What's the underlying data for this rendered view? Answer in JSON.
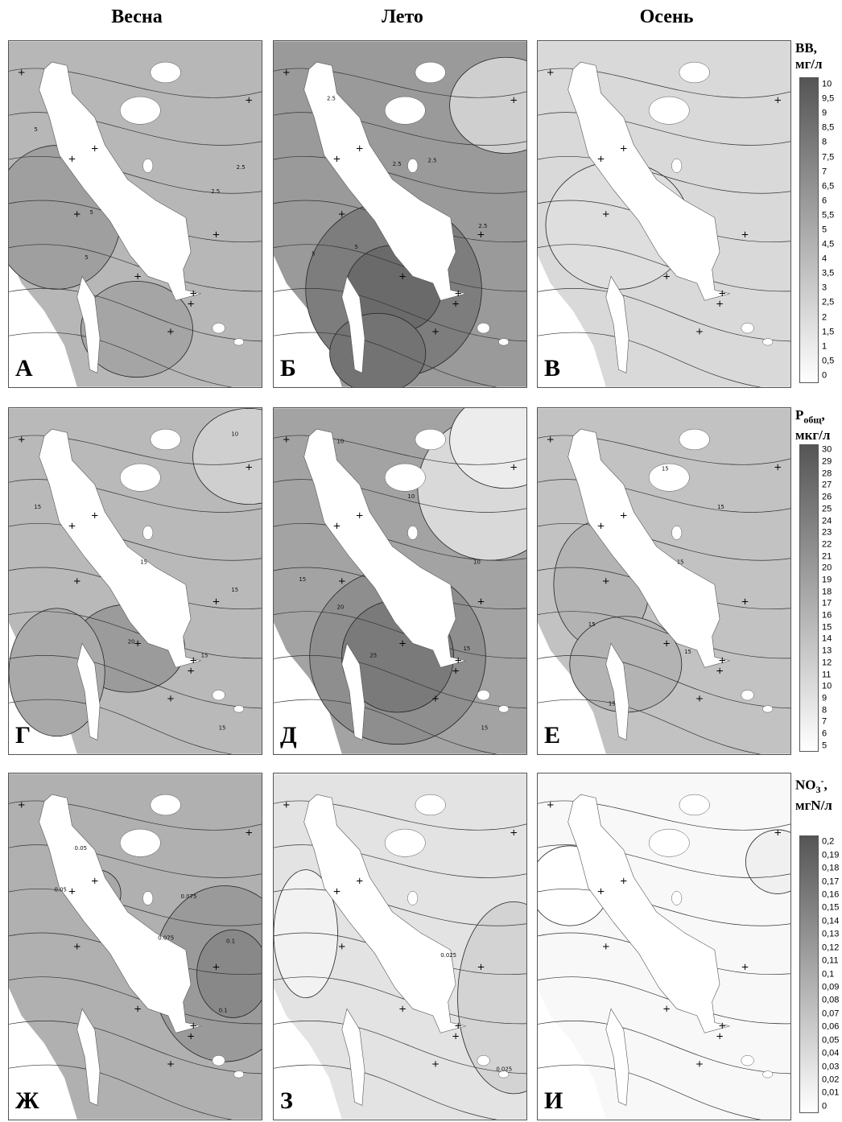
{
  "column_headers": [
    "Весна",
    "Лето",
    "Осень"
  ],
  "rows": [
    {
      "legend_title_html": "ВВ,<br>мг/л",
      "legend_ticks": [
        "10",
        "9,5",
        "9",
        "8,5",
        "8",
        "7,5",
        "7",
        "6,5",
        "6",
        "5,5",
        "5",
        "4,5",
        "4",
        "3,5",
        "3",
        "2,5",
        "2",
        "1,5",
        "1",
        "0,5",
        "0"
      ],
      "panels": [
        {
          "letter": "А",
          "contour_labels": [
            "5",
            "5",
            "5",
            "2.5",
            "2.5"
          ]
        },
        {
          "letter": "Б",
          "contour_labels": [
            "2.5",
            "2.5",
            "2.5",
            "5",
            "5",
            "2.5"
          ]
        },
        {
          "letter": "В",
          "contour_labels": []
        }
      ]
    },
    {
      "legend_title_html": "P<sub>общ</sub>,<br>мкг/л",
      "legend_ticks": [
        "30",
        "29",
        "28",
        "27",
        "26",
        "25",
        "24",
        "23",
        "22",
        "21",
        "20",
        "19",
        "18",
        "17",
        "16",
        "15",
        "14",
        "13",
        "12",
        "11",
        "10",
        "9",
        "8",
        "7",
        "6",
        "5"
      ],
      "panels": [
        {
          "letter": "Г",
          "contour_labels": [
            "10",
            "15",
            "15",
            "15",
            "20",
            "15",
            "15"
          ]
        },
        {
          "letter": "Д",
          "contour_labels": [
            "10",
            "10",
            "10",
            "15",
            "20",
            "25",
            "15",
            "15"
          ]
        },
        {
          "letter": "Е",
          "contour_labels": [
            "15",
            "15",
            "15",
            "15",
            "15",
            "15"
          ]
        }
      ]
    },
    {
      "legend_title_html": "NO<sub>3</sub><sup>-</sup>,<br>мгN/л",
      "legend_ticks": [
        "0,2",
        "0,19",
        "0,18",
        "0,17",
        "0,16",
        "0,15",
        "0,14",
        "0,13",
        "0,12",
        "0,11",
        "0,1",
        "0,09",
        "0,08",
        "0,07",
        "0,06",
        "0,05",
        "0,04",
        "0,03",
        "0,02",
        "0,01",
        "0"
      ],
      "panels": [
        {
          "letter": "Ж",
          "contour_labels": [
            "0.05",
            "0.05",
            "0.075",
            "0.075",
            "0.1",
            "0.1"
          ]
        },
        {
          "letter": "З",
          "contour_labels": [
            "0.025",
            "0.025"
          ]
        },
        {
          "letter": "И",
          "contour_labels": []
        }
      ]
    }
  ],
  "colors": {
    "water": "#ffffff",
    "contour_line": "#222222",
    "scale_max": "#555555",
    "scale_min": "#ffffff"
  }
}
